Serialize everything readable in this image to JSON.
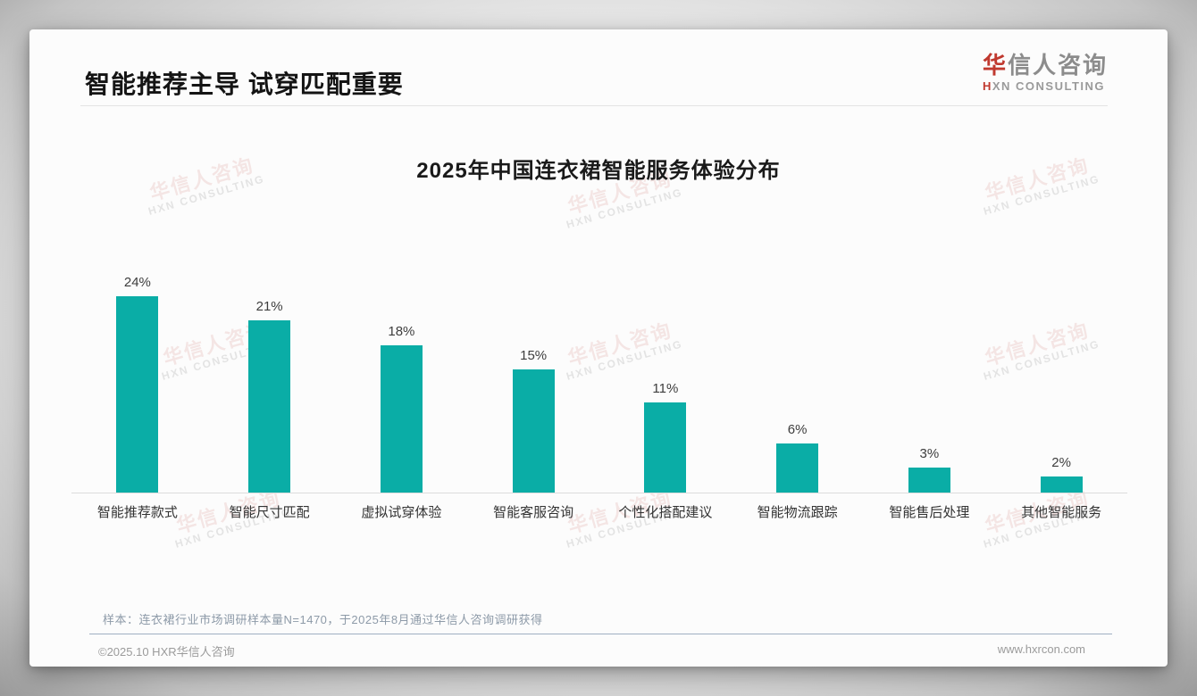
{
  "header": {
    "title": "智能推荐主导 试穿匹配重要",
    "logo": {
      "zh_accent": "华",
      "zh_rest": "信人咨询",
      "en_accent": "H",
      "en_rest": "XN CONSULTING"
    }
  },
  "watermark": {
    "zh": "华信人咨询",
    "en": "HXN CONSULTING"
  },
  "chart_data": {
    "type": "bar",
    "title": "2025年中国连衣裙智能服务体验分布",
    "categories": [
      "智能推荐款式",
      "智能尺寸匹配",
      "虚拟试穿体验",
      "智能客服咨询",
      "个性化搭配建议",
      "智能物流跟踪",
      "智能售后处理",
      "其他智能服务"
    ],
    "values": [
      24,
      21,
      18,
      15,
      11,
      6,
      3,
      2
    ],
    "data_labels": [
      "24%",
      "21%",
      "18%",
      "15%",
      "11%",
      "6%",
      "3%",
      "2%"
    ],
    "unit": "%",
    "ylim": [
      0,
      24
    ],
    "bar_color": "#0aada6",
    "grid": "off",
    "legend": "none",
    "xlabel": "",
    "ylabel": ""
  },
  "note": {
    "text": "样本：连衣裙行业市场调研样本量N=1470，于2025年8月通过华信人咨询调研获得"
  },
  "footer": {
    "copyright": "©2025.10 HXR华信人咨询",
    "website": "www.hxrcon.com"
  },
  "colors": {
    "bar": "#0aada6",
    "title_text": "#141414",
    "logo_accent": "#c0392f",
    "note_text": "#8d9aa8",
    "bottom_divider": "#9fb0c2"
  }
}
